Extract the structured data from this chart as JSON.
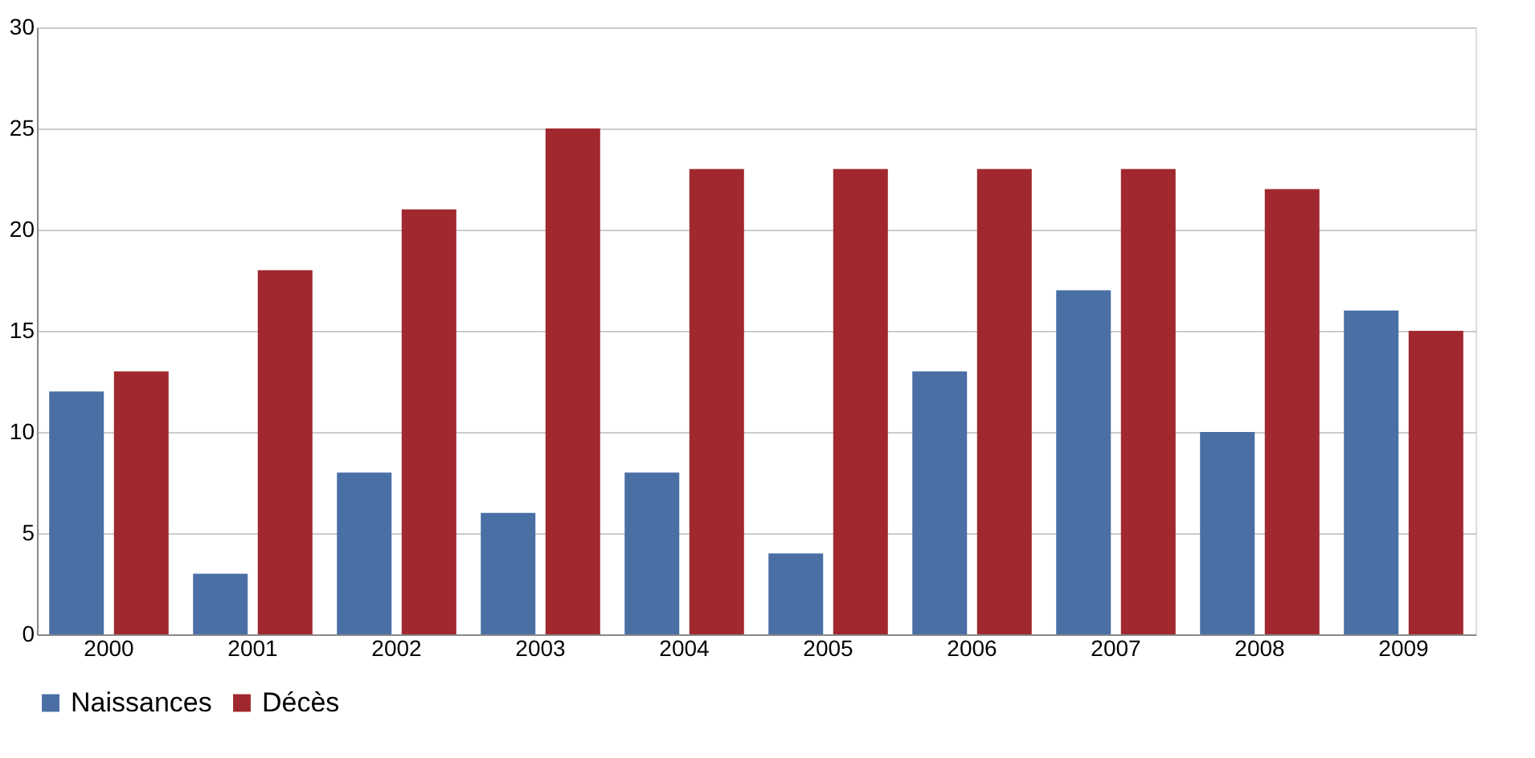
{
  "chart_data": {
    "type": "bar",
    "categories": [
      "2000",
      "2001",
      "2002",
      "2003",
      "2004",
      "2005",
      "2006",
      "2007",
      "2008",
      "2009"
    ],
    "series": [
      {
        "name": "Naissances",
        "color": "#4a6fa5",
        "values": [
          12,
          3,
          8,
          6,
          8,
          4,
          13,
          17,
          10,
          16
        ]
      },
      {
        "name": "Décès",
        "color": "#a0282e",
        "values": [
          13,
          18,
          21,
          25,
          23,
          23,
          23,
          23,
          22,
          15
        ]
      }
    ],
    "ylim": [
      0,
      30
    ],
    "yticks": [
      0,
      5,
      10,
      15,
      20,
      25,
      30
    ],
    "grid": "y",
    "legend": "bottom"
  }
}
